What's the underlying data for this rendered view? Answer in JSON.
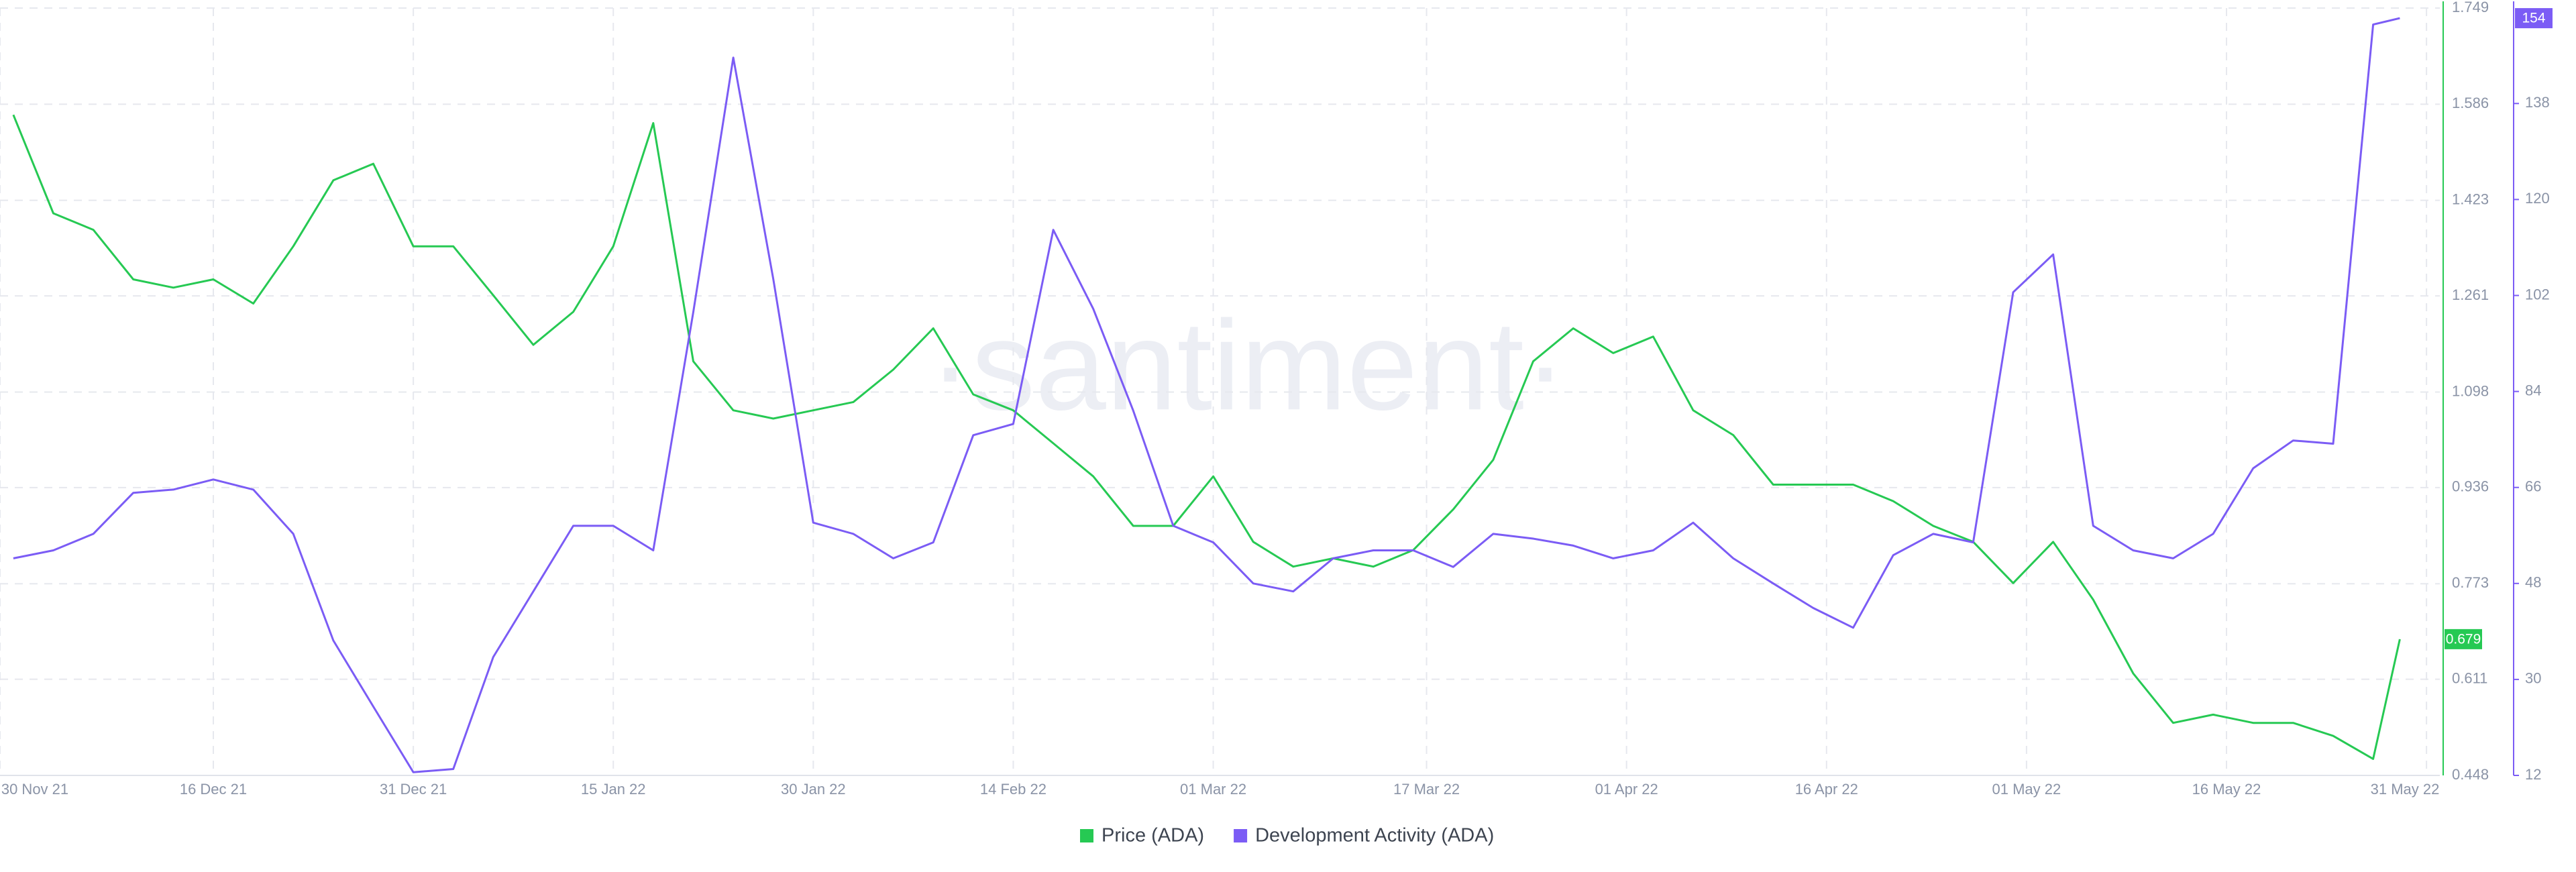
{
  "chart_data": {
    "type": "line",
    "watermark": "·santiment·",
    "x": [
      "2021-12-01",
      "2021-12-04",
      "2021-12-07",
      "2021-12-10",
      "2021-12-13",
      "2021-12-16",
      "2021-12-19",
      "2021-12-22",
      "2021-12-25",
      "2021-12-28",
      "2021-12-31",
      "2022-01-03",
      "2022-01-06",
      "2022-01-09",
      "2022-01-12",
      "2022-01-15",
      "2022-01-18",
      "2022-01-21",
      "2022-01-24",
      "2022-01-27",
      "2022-01-30",
      "2022-02-02",
      "2022-02-05",
      "2022-02-08",
      "2022-02-11",
      "2022-02-14",
      "2022-02-17",
      "2022-02-20",
      "2022-02-23",
      "2022-02-26",
      "2022-03-01",
      "2022-03-04",
      "2022-03-07",
      "2022-03-10",
      "2022-03-13",
      "2022-03-16",
      "2022-03-19",
      "2022-03-22",
      "2022-03-25",
      "2022-03-28",
      "2022-03-31",
      "2022-04-03",
      "2022-04-06",
      "2022-04-09",
      "2022-04-12",
      "2022-04-15",
      "2022-04-18",
      "2022-04-21",
      "2022-04-24",
      "2022-04-27",
      "2022-04-30",
      "2022-05-03",
      "2022-05-06",
      "2022-05-09",
      "2022-05-12",
      "2022-05-15",
      "2022-05-18",
      "2022-05-21",
      "2022-05-24",
      "2022-05-27",
      "2022-05-29"
    ],
    "series": [
      {
        "name": "Price (ADA)",
        "color": "#26c953",
        "axis": "y",
        "values": [
          1.568,
          1.401,
          1.373,
          1.289,
          1.275,
          1.289,
          1.248,
          1.345,
          1.457,
          1.485,
          1.345,
          1.345,
          1.262,
          1.178,
          1.234,
          1.345,
          1.554,
          1.15,
          1.067,
          1.053,
          1.067,
          1.081,
          1.136,
          1.206,
          1.094,
          1.067,
          1.011,
          0.955,
          0.871,
          0.871,
          0.955,
          0.844,
          0.802,
          0.816,
          0.802,
          0.83,
          0.899,
          0.983,
          1.15,
          1.206,
          1.164,
          1.192,
          1.067,
          1.025,
          0.941,
          0.941,
          0.941,
          0.913,
          0.871,
          0.844,
          0.774,
          0.844,
          0.746,
          0.621,
          0.537,
          0.551,
          0.537,
          0.537,
          0.515,
          0.476,
          0.679
        ]
      },
      {
        "name": "Development Activity (ADA)",
        "color": "#7b5cf5",
        "axis": "y2",
        "values": [
          52.7,
          54.2,
          57.3,
          65.0,
          65.6,
          67.5,
          65.6,
          57.3,
          37.3,
          24.9,
          12.6,
          13.2,
          34.2,
          46.5,
          58.8,
          58.8,
          54.2,
          98.9,
          146.6,
          105.1,
          59.4,
          57.3,
          52.7,
          55.7,
          75.8,
          77.9,
          114.3,
          99.5,
          80.4,
          58.8,
          55.7,
          48.0,
          46.5,
          52.7,
          54.2,
          54.2,
          51.1,
          57.3,
          56.4,
          55.1,
          52.7,
          54.2,
          59.4,
          52.7,
          48.0,
          43.4,
          39.7,
          53.3,
          57.3,
          55.7,
          102.6,
          109.7,
          58.8,
          54.2,
          52.7,
          57.3,
          69.6,
          74.8,
          74.2,
          152.8,
          154
        ]
      }
    ],
    "xlim": [
      "2021-11-30",
      "2022-06-01"
    ],
    "xticks": [
      {
        "value": "2021-11-30",
        "label": "30 Nov 21"
      },
      {
        "value": "2021-12-16",
        "label": "16 Dec 21"
      },
      {
        "value": "2021-12-31",
        "label": "31 Dec 21"
      },
      {
        "value": "2022-01-15",
        "label": "15 Jan 22"
      },
      {
        "value": "2022-01-30",
        "label": "30 Jan 22"
      },
      {
        "value": "2022-02-14",
        "label": "14 Feb 22"
      },
      {
        "value": "2022-03-01",
        "label": "01 Mar 22"
      },
      {
        "value": "2022-03-17",
        "label": "17 Mar 22"
      },
      {
        "value": "2022-04-01",
        "label": "01 Apr 22"
      },
      {
        "value": "2022-04-16",
        "label": "16 Apr 22"
      },
      {
        "value": "2022-05-01",
        "label": "01 May 22"
      },
      {
        "value": "2022-05-16",
        "label": "16 May 22"
      },
      {
        "value": "2022-05-31",
        "label": "31 May 22"
      }
    ],
    "ylim": [
      0.448,
      1.749
    ],
    "yticks": [
      0.448,
      0.611,
      0.773,
      0.936,
      1.098,
      1.261,
      1.423,
      1.586,
      1.749
    ],
    "y2lim": [
      12,
      155.9
    ],
    "y2ticks": [
      12,
      30,
      48,
      66,
      84,
      102,
      120,
      138
    ],
    "grid": true,
    "legend": "bottom"
  }
}
